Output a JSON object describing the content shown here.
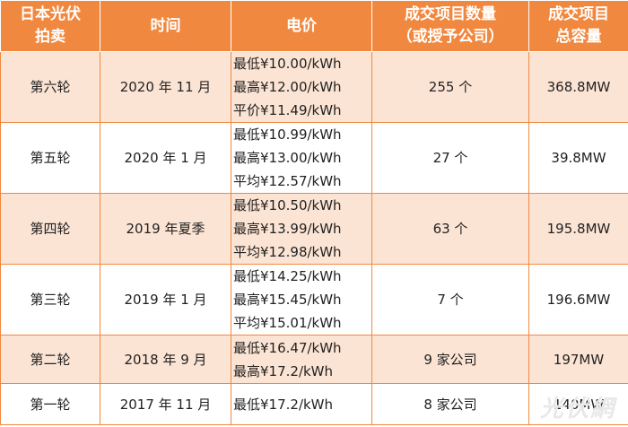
{
  "headers": {
    "round": [
      "日本光伏",
      "拍卖"
    ],
    "time": "时间",
    "price": "电价",
    "count": [
      "成交项目数量",
      "（或授予公司）"
    ],
    "capacity": [
      "成交项目",
      "总容量"
    ]
  },
  "rows": [
    {
      "round": "第六轮",
      "time": "2020 年 11 月",
      "price": [
        "最低¥10.00/kWh",
        "最高¥12.00/kWh",
        "平价¥11.49/kWh"
      ],
      "count": "255 个",
      "capacity": "368.8MW"
    },
    {
      "round": "第五轮",
      "time": "2020 年 1 月",
      "price": [
        "最低¥10.99/kWh",
        "最高¥13.00/kWh",
        "平均¥12.57/kWh"
      ],
      "count": "27 个",
      "capacity": "39.8MW"
    },
    {
      "round": "第四轮",
      "time": "2019 年夏季",
      "price": [
        "最低¥10.50/kWh",
        "最高¥13.99/kWh",
        "平均¥12.98/kWh"
      ],
      "count": "63 个",
      "capacity": "195.8MW"
    },
    {
      "round": "第三轮",
      "time": "2019 年 1 月",
      "price": [
        "最低¥14.25/kWh",
        "最高¥15.45/kWh",
        "平均¥15.01/kWh"
      ],
      "count": "7 个",
      "capacity": "196.6MW"
    },
    {
      "round": "第二轮",
      "time": "2018 年 9 月",
      "price": [
        "最低¥16.47/kWh",
        "最高¥17.2/kWh"
      ],
      "count": "9 家公司",
      "capacity": "197MW"
    },
    {
      "round": "第一轮",
      "time": "2017 年 11 月",
      "price": [
        "最低¥17.2/kWh"
      ],
      "count": "8 家公司",
      "capacity": "140MW"
    }
  ],
  "watermark": "光伏網",
  "colors": {
    "header_bg": "#f1883f",
    "alt_row_bg": "#fce4d4",
    "border": "#f1883f"
  }
}
